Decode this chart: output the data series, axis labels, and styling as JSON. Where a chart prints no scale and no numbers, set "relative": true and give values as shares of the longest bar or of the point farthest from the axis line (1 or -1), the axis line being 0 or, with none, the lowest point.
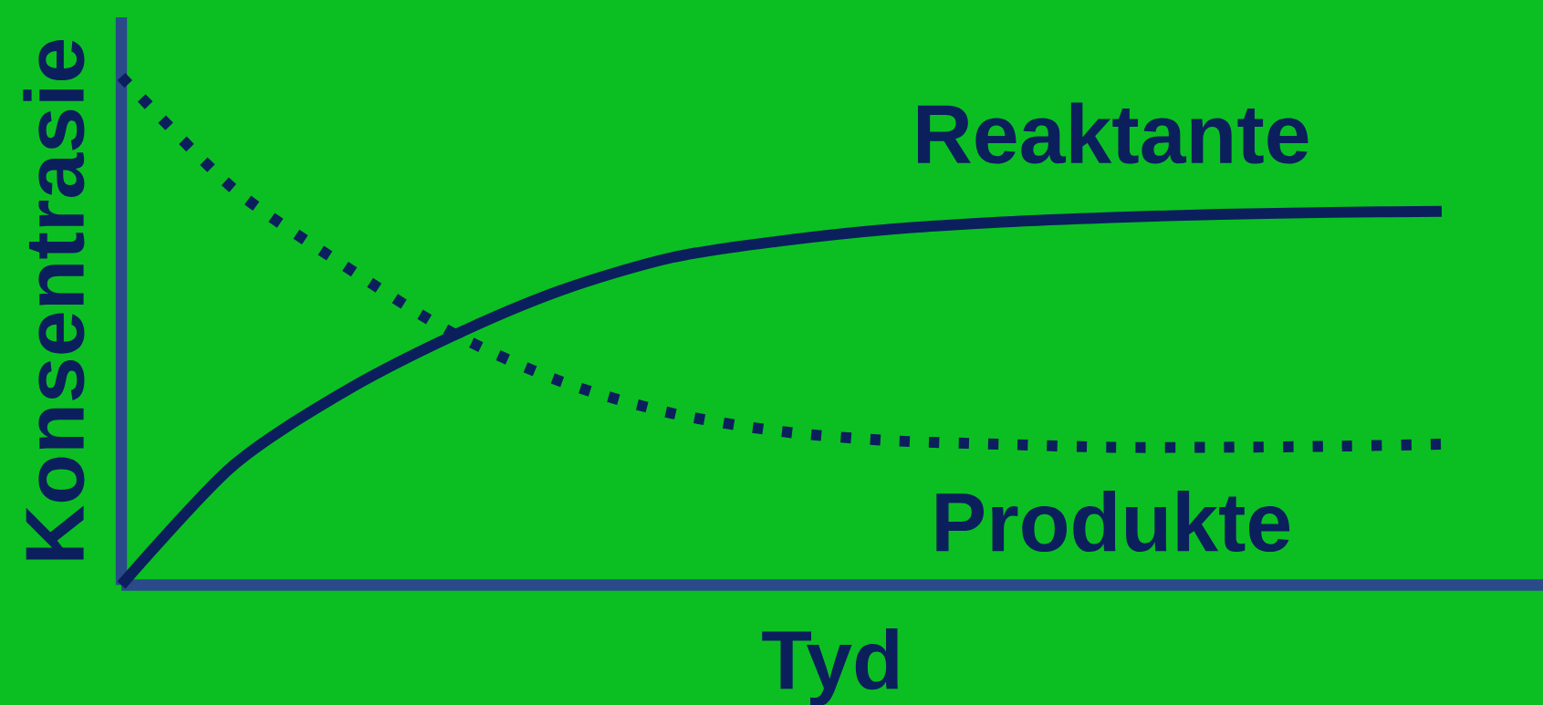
{
  "chart_data": {
    "type": "line",
    "relative": true,
    "xlabel": "Tyd",
    "ylabel": "Konsentrasie",
    "categories": [
      null,
      null,
      null,
      null,
      null,
      null,
      null,
      null,
      null,
      null,
      null,
      null,
      null
    ],
    "series": [
      {
        "name": "Reaktante",
        "color": "#0b1f5c",
        "line_style": "solid",
        "values": [
          0,
          0.232,
          0.377,
          0.489,
          0.58,
          0.644,
          0.677,
          0.7,
          0.714,
          0.723,
          0.729,
          0.733,
          0.735
        ]
      },
      {
        "name": "Produkte",
        "color": "#0b1f5c",
        "line_style": "dotted",
        "values": [
          1.0,
          0.783,
          0.632,
          0.497,
          0.4,
          0.338,
          0.302,
          0.284,
          0.277,
          0.271,
          0.271,
          0.273,
          0.277
        ]
      }
    ]
  }
}
